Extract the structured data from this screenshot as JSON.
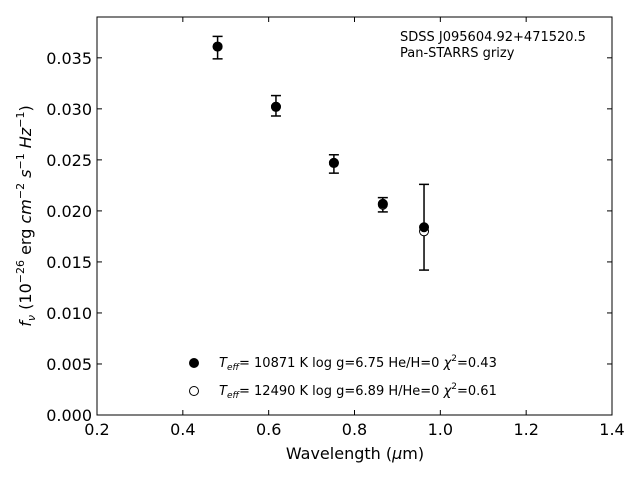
{
  "chart_data": {
    "type": "scatter",
    "xlim": [
      0.2,
      1.4
    ],
    "ylim": [
      0.0,
      0.039
    ],
    "x_ticks": [
      0.2,
      0.4,
      0.6,
      0.8,
      1.0,
      1.2,
      1.4
    ],
    "x_tick_labels": [
      "0.2",
      "0.4",
      "0.6",
      "0.8",
      "1.0",
      "1.2",
      "1.4"
    ],
    "y_ticks": [
      0.0,
      0.005,
      0.01,
      0.015,
      0.02,
      0.025,
      0.03,
      0.035
    ],
    "y_tick_labels": [
      "0.000",
      "0.005",
      "0.010",
      "0.015",
      "0.020",
      "0.025",
      "0.030",
      "0.035"
    ],
    "xlabel": {
      "base": "Wavelength (",
      "mu": "μ",
      "unit": "m)"
    },
    "ylabel": {
      "f": "f",
      "nu": "ν",
      "open": " (10",
      "exp26": "−26",
      "erg": " erg ",
      "cm": "cm",
      "exp_cm": "−2",
      "s": " s",
      "exp_s": "−1",
      "hz": " Hz",
      "exp_hz": "−1",
      "close": ")"
    },
    "annotations": [
      "SDSS J095604.92+471520.5",
      "Pan-STARRS grizy"
    ],
    "observed": {
      "x": [
        0.481,
        0.617,
        0.752,
        0.866,
        0.962
      ],
      "y": [
        0.036,
        0.0303,
        0.0246,
        0.0206,
        0.0184
      ],
      "yerr": [
        0.0011,
        0.001,
        0.0009,
        0.0007,
        0.0042
      ]
    },
    "series": [
      {
        "marker": "filled",
        "x": [
          0.481,
          0.617,
          0.752,
          0.866,
          0.962
        ],
        "y": [
          0.0361,
          0.0302,
          0.0247,
          0.0207,
          0.0184
        ],
        "legend": {
          "teff": "T",
          "teff_sub": "eff",
          "text": "= 10871 K  log g=6.75  He/H=0  ",
          "chi": "χ",
          "chi_exp": "2",
          "chi_val": "=0.43"
        }
      },
      {
        "marker": "open",
        "x": [
          0.481,
          0.617,
          0.752,
          0.866,
          0.962
        ],
        "y": [
          0.0361,
          0.0302,
          0.0247,
          0.0206,
          0.018
        ],
        "legend": {
          "teff": "T",
          "teff_sub": "eff",
          "text": "= 12490 K  log g=6.89  H/He=0  ",
          "chi": "χ",
          "chi_exp": "2",
          "chi_val": "=0.61"
        }
      }
    ]
  }
}
